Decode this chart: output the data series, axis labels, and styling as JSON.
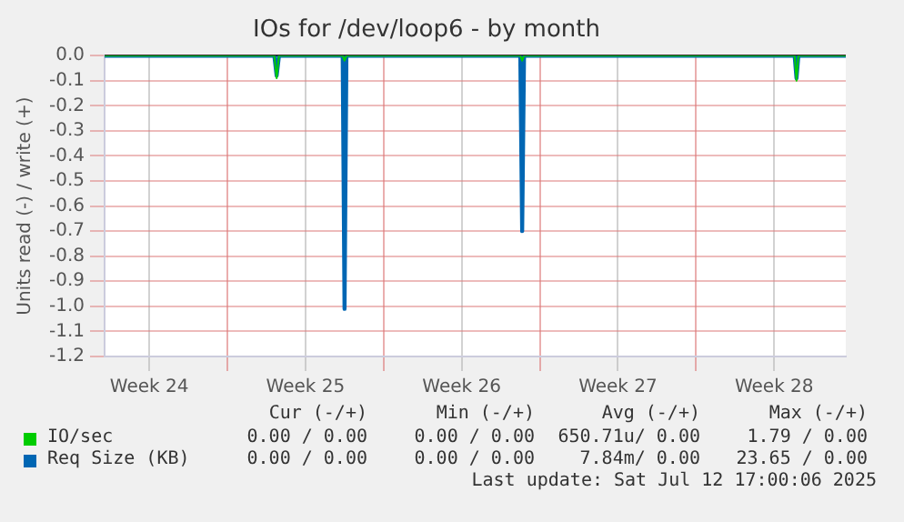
{
  "chart_data": {
    "type": "line",
    "title": "IOs for /dev/loop6 - by month",
    "ylabel": "Units read (-) / write (+)",
    "xlim": [
      "2025-06-09T12:00",
      "2025-07-12T17:00"
    ],
    "xticks": [
      {
        "value": "2025-06-11T12:00",
        "label": "Week 24"
      },
      {
        "value": "2025-06-15",
        "label": null
      },
      {
        "value": "2025-06-18T12:00",
        "label": "Week 25"
      },
      {
        "value": "2025-06-22",
        "label": null
      },
      {
        "value": "2025-06-25T12:00",
        "label": "Week 26"
      },
      {
        "value": "2025-06-29",
        "label": null
      },
      {
        "value": "2025-07-02T12:00",
        "label": "Week 27"
      },
      {
        "value": "2025-07-06",
        "label": null
      },
      {
        "value": "2025-07-09T12:00",
        "label": "Week 28"
      }
    ],
    "ylim": [
      -1.2,
      0
    ],
    "yticks": [
      {
        "value": 0,
        "label": "0.0"
      },
      {
        "value": -0.1,
        "label": "-0.1"
      },
      {
        "value": -0.2,
        "label": "-0.2"
      },
      {
        "value": -0.3,
        "label": "-0.3"
      },
      {
        "value": -0.4,
        "label": "-0.4"
      },
      {
        "value": -0.5,
        "label": "-0.5"
      },
      {
        "value": -0.6,
        "label": "-0.6"
      },
      {
        "value": -0.7,
        "label": "-0.7"
      },
      {
        "value": -0.8,
        "label": "-0.8"
      },
      {
        "value": -0.9,
        "label": "-0.9"
      },
      {
        "value": -1.0,
        "label": "-1.0"
      },
      {
        "value": -1.1,
        "label": "-1.1"
      },
      {
        "value": -1.2,
        "label": "-1.2"
      }
    ],
    "grid": true,
    "legend": "bottom",
    "marker": "none",
    "line_style": "solid",
    "series": [
      {
        "name": "IO/sec",
        "color": "#00cc00",
        "x": [
          "2025-06-09T12:00",
          "2025-06-17T02:30",
          "2025-06-17T05:00",
          "2025-06-17T07:30",
          "2025-06-20T04:00",
          "2025-06-20T06:00",
          "2025-06-20T08:00",
          "2025-06-28T03:00",
          "2025-06-28T05:00",
          "2025-06-28T07:00",
          "2025-07-10T10:00",
          "2025-07-10T12:00",
          "2025-07-10T14:00",
          "2025-07-12T17:00"
        ],
        "values": [
          0,
          0,
          -0.09,
          0,
          0,
          -0.02,
          0,
          0,
          -0.02,
          0,
          0,
          -0.1,
          0,
          0
        ]
      },
      {
        "name": "Req Size (KB)",
        "color": "#0066b3",
        "x": [
          "2025-06-09T12:00",
          "2025-06-17T02:30",
          "2025-06-17T05:00",
          "2025-06-17T07:30",
          "2025-06-20T04:00",
          "2025-06-20T06:00",
          "2025-06-20T08:00",
          "2025-06-28T03:00",
          "2025-06-28T05:00",
          "2025-06-28T07:00",
          "2025-07-10T10:00",
          "2025-07-10T12:00",
          "2025-07-10T14:00",
          "2025-07-12T17:00"
        ],
        "values": [
          0,
          0,
          -0.08,
          0,
          0,
          -1.01,
          0,
          0,
          -0.7,
          0,
          0,
          -0.09,
          0,
          0
        ]
      }
    ],
    "annotations": [
      "Cur (-/+)",
      "Min (-/+)",
      "Avg (-/+)",
      "Max (-/+)",
      "0.00 / 0.00",
      "0.00 / 0.00",
      "650.71u/ 0.00",
      "1.79 / 0.00",
      "0.00 / 0.00",
      "0.00 / 0.00",
      "7.84m/ 0.00",
      "23.65 / 0.00",
      "Last update: Sat Jul 12 17:00:06 2025"
    ]
  }
}
